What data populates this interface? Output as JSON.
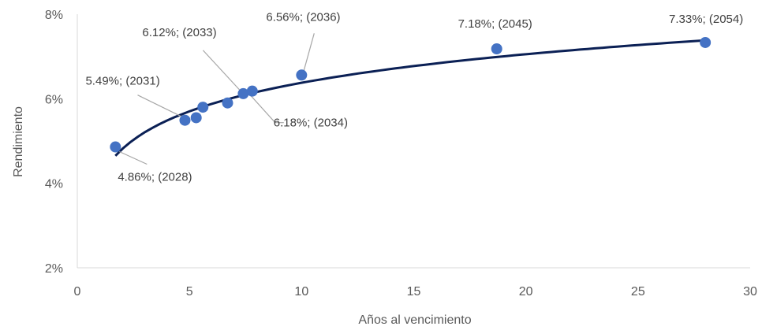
{
  "chart_data": {
    "type": "scatter",
    "xlabel": "Años al vencimiento",
    "ylabel": "Rendimiento",
    "xlim": [
      0,
      30
    ],
    "ylim": [
      2,
      8
    ],
    "xticks": [
      "0",
      "5",
      "10",
      "15",
      "20",
      "25",
      "30"
    ],
    "xtick_values": [
      0,
      5,
      10,
      15,
      20,
      25,
      30
    ],
    "yticks": [
      "2%",
      "4%",
      "6%",
      "8%"
    ],
    "ytick_values": [
      2,
      4,
      6,
      8
    ],
    "grid": false,
    "legend": "none",
    "colors": {
      "points": "#4472c4",
      "trendline": "#0b2055",
      "axis": "#d9d9d9",
      "leader": "#a6a6a6"
    },
    "points": [
      {
        "x": 1.7,
        "y": 4.86,
        "label": "4.86%; (2028)"
      },
      {
        "x": 4.8,
        "y": 5.49,
        "label": "5.49%; (2031)"
      },
      {
        "x": 5.3,
        "y": 5.55,
        "label": ""
      },
      {
        "x": 5.6,
        "y": 5.8,
        "label": ""
      },
      {
        "x": 6.7,
        "y": 5.9,
        "label": ""
      },
      {
        "x": 7.4,
        "y": 6.12,
        "label": "6.12%; (2033)"
      },
      {
        "x": 7.8,
        "y": 6.18,
        "label": "6.18%; (2034)"
      },
      {
        "x": 10.0,
        "y": 6.56,
        "label": "6.56%; (2036)"
      },
      {
        "x": 18.7,
        "y": 7.18,
        "label": "7.18%; (2045)"
      },
      {
        "x": 28.0,
        "y": 7.33,
        "label": "7.33%; (2054)"
      }
    ],
    "trendline": {
      "type": "logarithmic",
      "x_start": 1.7,
      "x_end": 28.0,
      "y_start": 4.65,
      "y_end": 7.38
    }
  }
}
